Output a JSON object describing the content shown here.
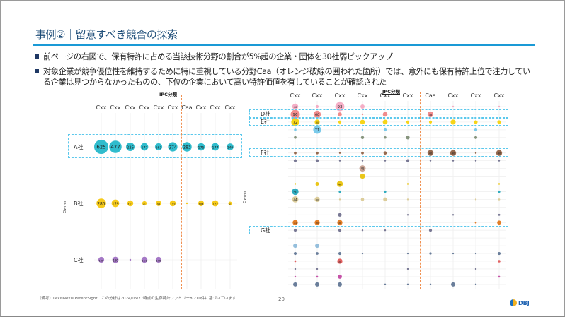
{
  "title": "事例②｜留意すべき競合の探索",
  "bullets": [
    "前ページの右図で、保有特許に占める当該技術分野の割合が5%超の企業・団体を30社弱ピックアップ",
    "対象企業が競争優位性を維持するために特に重視している分野Caa（オレンジ破線の囲われた箇所）では、意外にも保有特許上位で注力している企業は見つからなかったものの、下位の企業において高い特許価値を有していることが確認された"
  ],
  "chart_data": [
    {
      "type": "bubble",
      "xlabel": "IPC分類",
      "ylabel": "Owner",
      "categories": [
        "Cxx",
        "Cxx",
        "Cxx",
        "Cxx",
        "Cxx",
        "Cxx",
        "Caa",
        "Cxx",
        "Cxx",
        "Cxx"
      ],
      "highlight_category": "Caa",
      "series": [
        {
          "name": "A社",
          "color": "#19b5c8",
          "values": [
            625,
            477,
            225,
            177,
            163,
            274,
            283,
            175,
            177,
            149
          ],
          "highlighted": true
        },
        {
          "name": "B社",
          "color": "#f5c400",
          "values": [
            285,
            179,
            111,
            61,
            93,
            112,
            3,
            104,
            122,
            41
          ],
          "highlighted": false
        },
        {
          "name": "C社",
          "color": "#9b6ac0",
          "values": [
            105,
            120,
            7,
            111,
            105,
            0,
            0,
            0,
            0,
            0
          ],
          "highlighted": false
        }
      ]
    },
    {
      "type": "bubble",
      "xlabel": "IPC分類",
      "ylabel": "Owner",
      "categories": [
        "Cxx",
        "Cxx",
        "Cxx",
        "Cxx",
        "Cxx",
        "Cxx",
        "Caa",
        "Cxx",
        "Cxx",
        "Cxx"
      ],
      "highlight_category": "Caa",
      "series": [
        {
          "name": "",
          "color": "#f4a6c0",
          "values": [
            40,
            10,
            93,
            20,
            0,
            0,
            0,
            1,
            0,
            3
          ]
        },
        {
          "name": "D社",
          "color": "#f08080",
          "values": [
            96,
            60,
            18,
            1,
            25,
            0,
            38,
            0,
            0,
            0
          ],
          "highlighted": true
        },
        {
          "name": "E社",
          "color": "#f5d000",
          "values": [
            72,
            30,
            10,
            25,
            26,
            10,
            10,
            29,
            15,
            15
          ],
          "highlighted": true
        },
        {
          "name": "",
          "color": "#6cc4e8",
          "values": [
            7,
            71,
            0,
            1,
            10,
            0,
            0,
            0,
            10,
            0
          ]
        },
        {
          "name": "",
          "color": "#7a8a70",
          "values": [
            8,
            0,
            0,
            11,
            7,
            16,
            0,
            0,
            10,
            0
          ]
        },
        {
          "name": "",
          "color": "#999999",
          "values": [
            0,
            0,
            0,
            0,
            0,
            0,
            0,
            0,
            0,
            0
          ]
        },
        {
          "name": "F社",
          "color": "#8b5a3c",
          "values": [
            8,
            8,
            3,
            8,
            12,
            0,
            40,
            40,
            3,
            40
          ],
          "highlighted": true
        },
        {
          "name": "",
          "color": "#6a6a8a",
          "values": [
            10,
            10,
            1,
            1,
            1,
            10,
            1,
            1,
            1,
            1
          ]
        },
        {
          "name": "",
          "color": "#c49a8a",
          "values": [
            0,
            0,
            0,
            45,
            0,
            0,
            0,
            0,
            0,
            0
          ]
        },
        {
          "name": "",
          "color": "#e8c000",
          "values": [
            0,
            0,
            0,
            29,
            0,
            0,
            0,
            0,
            0,
            0
          ]
        },
        {
          "name": "",
          "color": "#e8c000",
          "values": [
            1,
            14,
            40,
            0,
            0,
            1,
            0,
            0,
            0,
            3
          ]
        },
        {
          "name": "",
          "color": "#1aa3b8",
          "values": [
            50,
            0,
            6,
            0,
            6,
            0,
            0,
            0,
            0,
            6
          ]
        },
        {
          "name": "",
          "color": "#d8c890",
          "values": [
            44,
            30,
            3,
            12,
            17,
            1,
            0,
            0,
            1,
            4
          ]
        },
        {
          "name": "",
          "color": "#999999",
          "values": [
            0,
            0,
            0,
            0,
            0,
            0,
            0,
            0,
            0,
            0
          ]
        },
        {
          "name": "",
          "color": "#6a6a8a",
          "values": [
            0,
            0,
            15,
            0,
            0,
            1,
            0,
            1,
            0,
            5
          ]
        },
        {
          "name": "",
          "color": "#e07010",
          "values": [
            31,
            30,
            30,
            0,
            0,
            0,
            0,
            0,
            4,
            18
          ]
        },
        {
          "name": "G社",
          "color": "#6a6a8a",
          "values": [
            10,
            0,
            10,
            2,
            3,
            0,
            10,
            0,
            0,
            0
          ],
          "highlighted": true
        },
        {
          "name": "",
          "color": "#999999",
          "values": [
            0,
            0,
            0,
            0,
            0,
            0,
            0,
            0,
            0,
            0
          ]
        },
        {
          "name": "",
          "color": "#8ab8d8",
          "values": [
            20,
            20,
            0,
            0,
            0,
            0,
            0,
            0,
            0,
            0
          ]
        },
        {
          "name": "",
          "color": "#5a7090",
          "values": [
            10,
            8,
            10,
            2,
            0,
            1,
            6,
            2,
            2,
            10
          ]
        },
        {
          "name": "",
          "color": "#e05050",
          "values": [
            4,
            0,
            30,
            0,
            0,
            0,
            0,
            0,
            0,
            7
          ]
        },
        {
          "name": "",
          "color": "#6a6a8a",
          "values": [
            1,
            1,
            0,
            0,
            0,
            1,
            0,
            0,
            1,
            0
          ]
        },
        {
          "name": "",
          "color": "#c040a0",
          "values": [
            1,
            4,
            20,
            0,
            0,
            0,
            0,
            0,
            0,
            4
          ]
        },
        {
          "name": "",
          "color": "#5a7090",
          "values": [
            20,
            20,
            20,
            0,
            3,
            1,
            1,
            20,
            1,
            0
          ]
        }
      ]
    }
  ],
  "footer": {
    "note": "（備考）LexisNexis PatentSight　この分析は2024/06/27時点の生存特許ファミリー8,210件に基づいています",
    "page": "20",
    "logo_text": "DBJ"
  }
}
